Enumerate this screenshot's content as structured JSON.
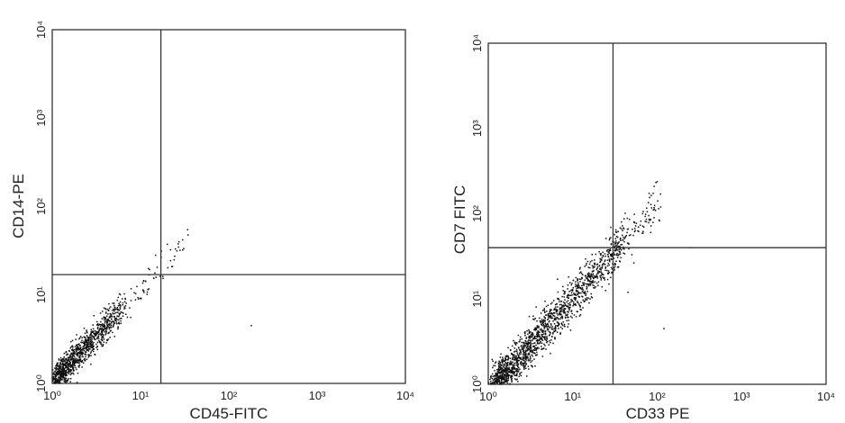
{
  "chart_data": [
    {
      "type": "scatter",
      "title": "",
      "xlabel": "CD45-FITC",
      "ylabel": "CD14-PE",
      "x_scale": "log",
      "y_scale": "log",
      "xlim": [
        1,
        10000
      ],
      "ylim": [
        1,
        10000
      ],
      "x_ticks": [
        "10⁰",
        "10¹",
        "10²",
        "10³",
        "10⁴"
      ],
      "y_ticks": [
        "10⁰",
        "10¹",
        "10²",
        "10³",
        "10⁴"
      ],
      "quadrant_gate": {
        "x": 17,
        "y": 17
      },
      "grid": false,
      "population": {
        "x_from": 1.1,
        "x_to": 6,
        "slope": 1.05,
        "intercept": 0.02,
        "spread": 0.09,
        "count": 1100,
        "tail_x_to": 35,
        "tail_count": 60,
        "outliers": [
          [
            180,
            4.5
          ],
          [
            23,
            21
          ],
          [
            28,
            32
          ]
        ]
      }
    },
    {
      "type": "scatter",
      "title": "",
      "xlabel": "CD33 PE",
      "ylabel": "CD7 FITC",
      "x_scale": "log",
      "y_scale": "log",
      "xlim": [
        1,
        10000
      ],
      "ylim": [
        1,
        10000
      ],
      "x_ticks": [
        "10⁰",
        "10¹",
        "10²",
        "10³",
        "10⁴"
      ],
      "y_ticks": [
        "10⁰",
        "10¹",
        "10²",
        "10³",
        "10⁴"
      ],
      "quadrant_gate": {
        "x": 30,
        "y": 40
      },
      "grid": false,
      "population": {
        "x_from": 1.2,
        "x_to": 40,
        "slope": 1.1,
        "intercept": -0.1,
        "spread": 0.12,
        "count": 1700,
        "tail_x_to": 110,
        "tail_count": 70,
        "outliers": [
          [
            120,
            4.5
          ],
          [
            45,
            12
          ],
          [
            110,
            120
          ],
          [
            60,
            70
          ],
          [
            250,
            40
          ]
        ]
      }
    }
  ]
}
